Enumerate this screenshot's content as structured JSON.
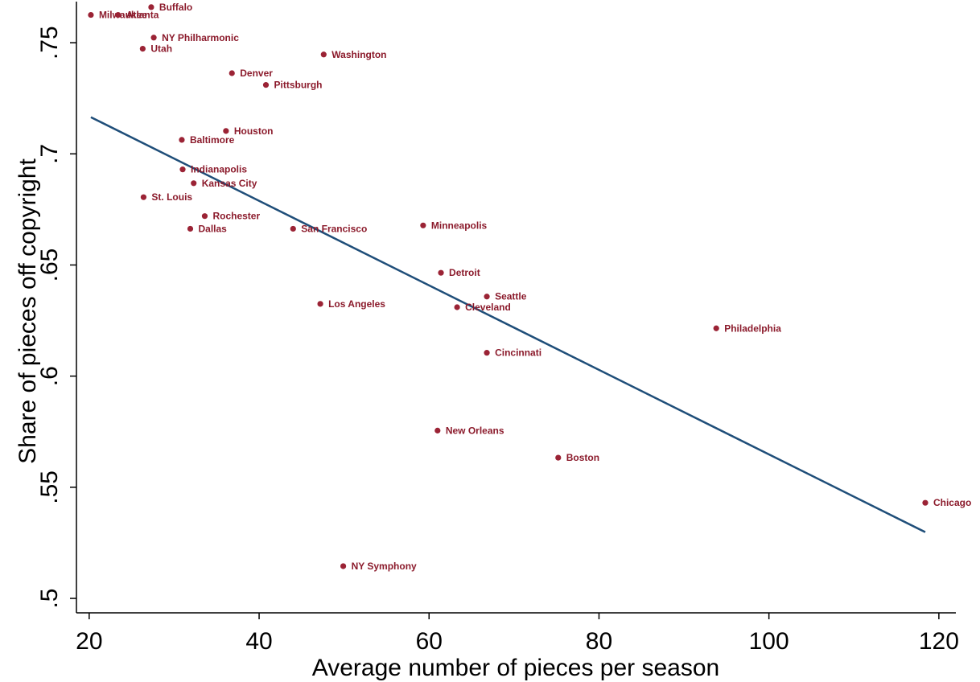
{
  "chart_data": {
    "type": "scatter",
    "title": "",
    "xlabel": "Average number of pieces per season",
    "ylabel": "Share of pieces off copyright",
    "xlim": [
      18.5,
      122
    ],
    "ylim": [
      0.4935,
      0.7685
    ],
    "xticks": [
      20,
      40,
      60,
      80,
      100,
      120
    ],
    "xtick_labels": [
      "20",
      "40",
      "60",
      "80",
      "100",
      "120"
    ],
    "yticks": [
      0.5,
      0.55,
      0.6,
      0.65,
      0.7,
      0.75
    ],
    "ytick_labels": [
      ".5",
      ".55",
      ".6",
      ".65",
      ".7",
      ".75"
    ],
    "grid": false,
    "legend": "none",
    "marker_color": "#9b2335",
    "label_color": "#8b1a2b",
    "fit_color": "#1f4e79",
    "points": [
      {
        "label": "Milwaukee",
        "x": 20.2,
        "y": 0.7625
      },
      {
        "label": "Atlanta",
        "x": 23.4,
        "y": 0.7625
      },
      {
        "label": "Buffalo",
        "x": 27.3,
        "y": 0.766
      },
      {
        "label": "NY Philharmonic",
        "x": 27.6,
        "y": 0.7523
      },
      {
        "label": "Utah",
        "x": 26.3,
        "y": 0.7473
      },
      {
        "label": "Washington",
        "x": 47.6,
        "y": 0.7447
      },
      {
        "label": "Denver",
        "x": 36.8,
        "y": 0.7363
      },
      {
        "label": "Pittsburgh",
        "x": 40.8,
        "y": 0.731
      },
      {
        "label": "Houston",
        "x": 36.1,
        "y": 0.7103
      },
      {
        "label": "Baltimore",
        "x": 30.9,
        "y": 0.7063
      },
      {
        "label": "Indianapolis",
        "x": 31.0,
        "y": 0.693
      },
      {
        "label": "Kansas City",
        "x": 32.3,
        "y": 0.6868
      },
      {
        "label": "St. Louis",
        "x": 26.4,
        "y": 0.6805
      },
      {
        "label": "Rochester",
        "x": 33.6,
        "y": 0.672
      },
      {
        "label": "Dallas",
        "x": 31.9,
        "y": 0.6663
      },
      {
        "label": "San Francisco",
        "x": 44.0,
        "y": 0.6663
      },
      {
        "label": "Minneapolis",
        "x": 59.3,
        "y": 0.6678
      },
      {
        "label": "Detroit",
        "x": 61.4,
        "y": 0.6465
      },
      {
        "label": "Seattle",
        "x": 66.8,
        "y": 0.6358
      },
      {
        "label": "Los Angeles",
        "x": 47.2,
        "y": 0.6325
      },
      {
        "label": "Cleveland",
        "x": 63.3,
        "y": 0.631
      },
      {
        "label": "Philadelphia",
        "x": 93.8,
        "y": 0.6215
      },
      {
        "label": "Cincinnati",
        "x": 66.8,
        "y": 0.6105
      },
      {
        "label": "New Orleans",
        "x": 61.0,
        "y": 0.5755
      },
      {
        "label": "Boston",
        "x": 75.2,
        "y": 0.5633
      },
      {
        "label": "Chicago",
        "x": 118.4,
        "y": 0.543
      },
      {
        "label": "NY Symphony",
        "x": 49.9,
        "y": 0.5145
      }
    ],
    "fit_line": {
      "x": [
        20.2,
        118.4
      ],
      "y": [
        0.7165,
        0.5298
      ]
    }
  }
}
